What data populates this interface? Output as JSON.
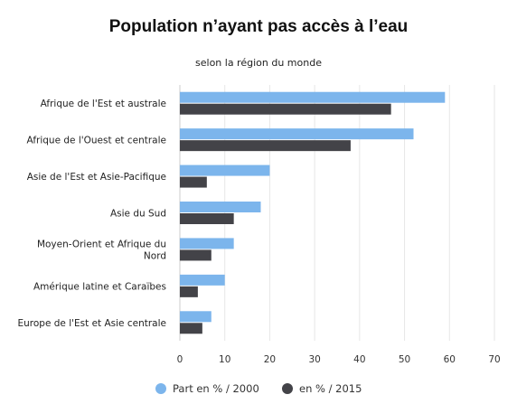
{
  "chart_data": {
    "type": "bar",
    "orientation": "horizontal",
    "title": "Population n’ayant pas accès à l’eau",
    "subtitle": "selon la région du monde",
    "categories": [
      [
        "Afrique de l'Est et australe"
      ],
      [
        "Afrique de l'Ouest et centrale"
      ],
      [
        "Asie de l'Est et Asie-Pacifique"
      ],
      [
        "Asie du Sud"
      ],
      [
        "Moyen-Orient et Afrique du",
        "Nord"
      ],
      [
        "Amérique latine et Caraïbes"
      ],
      [
        "Europe de l'Est et Asie centrale"
      ]
    ],
    "series": [
      {
        "name": "Part en % / 2000",
        "color": "#7cb5ec",
        "values": [
          59,
          52,
          20,
          18,
          12,
          10,
          7
        ]
      },
      {
        "name": "en % / 2015",
        "color": "#434348",
        "values": [
          47,
          38,
          6,
          12,
          7,
          4,
          5
        ]
      }
    ],
    "xlim": [
      0,
      70
    ],
    "xticks": [
      0,
      10,
      20,
      30,
      40,
      50,
      60,
      70
    ],
    "grid": true,
    "legend": "bottom-center"
  }
}
